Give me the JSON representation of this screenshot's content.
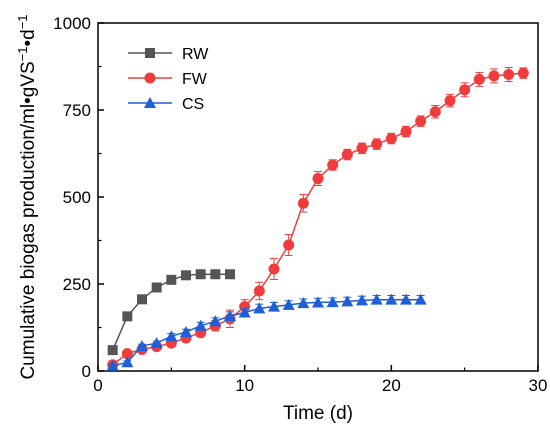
{
  "chart_data": {
    "type": "line",
    "xlabel": "Time (d)",
    "ylabel": "Cumulative biogas production/ml•gVS",
    "ylabel_sup1": "−1",
    "ylabel_mid": "•d",
    "ylabel_sup2": "−1",
    "xlim": [
      0,
      30
    ],
    "ylim": [
      0,
      1000
    ],
    "x_ticks": [
      "0",
      "10",
      "20",
      "30"
    ],
    "y_ticks": [
      "0",
      "250",
      "500",
      "750",
      "1000"
    ],
    "grid": false,
    "legend_position": "top-left",
    "series": [
      {
        "name": "RW",
        "color": "#555555",
        "marker": "square",
        "x": [
          1,
          2,
          3,
          4,
          5,
          6,
          7,
          8,
          9
        ],
        "y": [
          60,
          157,
          206,
          240,
          262,
          275,
          278,
          278,
          278
        ],
        "err": [
          3,
          4,
          4,
          4,
          4,
          4,
          4,
          4,
          4
        ]
      },
      {
        "name": "FW",
        "color": "#f03c3c",
        "marker": "circle",
        "x": [
          1,
          2,
          3,
          4,
          5,
          6,
          7,
          8,
          9,
          10,
          11,
          12,
          13,
          14,
          15,
          16,
          17,
          18,
          19,
          20,
          21,
          22,
          23,
          24,
          25,
          26,
          27,
          28,
          29
        ],
        "y": [
          18,
          50,
          62,
          70,
          80,
          95,
          110,
          130,
          150,
          185,
          230,
          293,
          362,
          482,
          553,
          592,
          622,
          640,
          652,
          668,
          688,
          718,
          745,
          777,
          808,
          838,
          848,
          852,
          856
        ],
        "err": [
          4,
          5,
          6,
          7,
          8,
          10,
          12,
          15,
          25,
          20,
          25,
          30,
          30,
          25,
          20,
          15,
          15,
          15,
          15,
          15,
          15,
          15,
          18,
          18,
          20,
          20,
          20,
          20,
          15
        ]
      },
      {
        "name": "CS",
        "color": "#1f5fd6",
        "marker": "triangle",
        "x": [
          1,
          2,
          3,
          4,
          5,
          6,
          7,
          8,
          9,
          10,
          11,
          12,
          13,
          14,
          15,
          16,
          17,
          18,
          19,
          20,
          21,
          22
        ],
        "y": [
          15,
          25,
          72,
          80,
          100,
          112,
          130,
          143,
          158,
          168,
          180,
          185,
          190,
          195,
          197,
          198,
          200,
          203,
          205,
          205,
          205,
          205
        ],
        "err": [
          3,
          4,
          5,
          6,
          8,
          8,
          10,
          10,
          12,
          12,
          12,
          12,
          12,
          12,
          12,
          12,
          12,
          12,
          12,
          12,
          12,
          12
        ]
      }
    ]
  }
}
